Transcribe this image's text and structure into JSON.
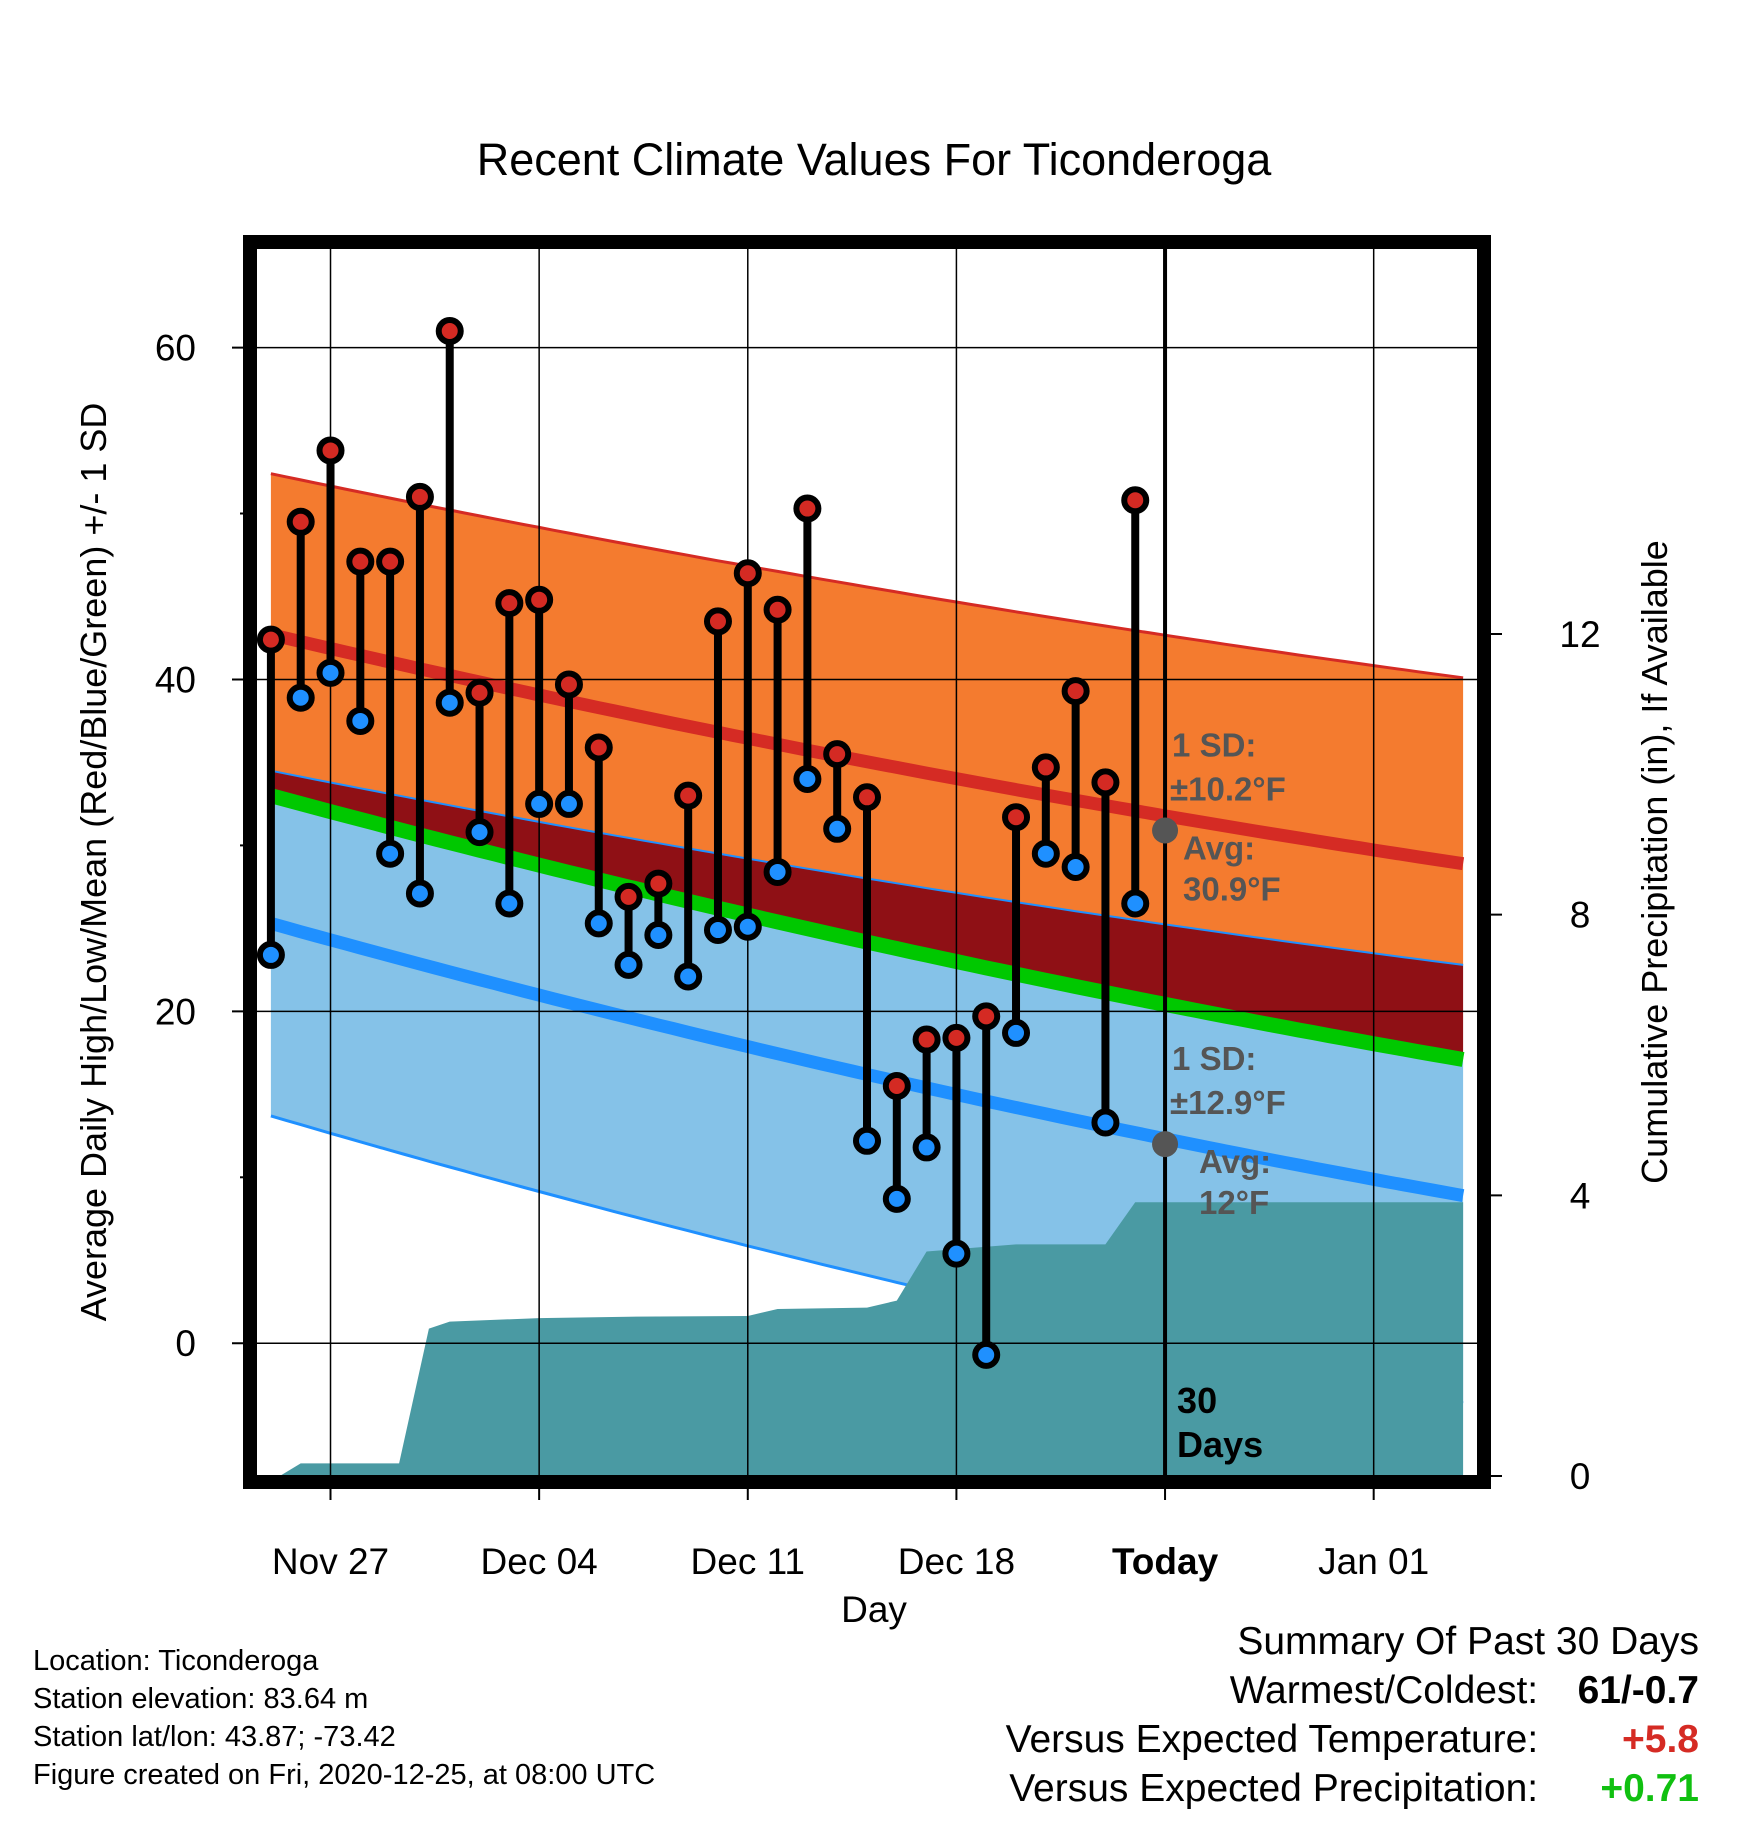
{
  "chart_data": {
    "type": "line",
    "title": "Recent Climate Values For Ticonderoga",
    "xlabel": "Day",
    "ylabel": "Average Daily High/Low/Mean (Red/Blue/Green) +/- 1 SD",
    "y2label": "Cumulative Precipitation (in), If Available",
    "x_ticks": [
      {
        "day": 3,
        "label": "Nov 27"
      },
      {
        "day": 10,
        "label": "Dec 04"
      },
      {
        "day": 17,
        "label": "Dec 11"
      },
      {
        "day": 24,
        "label": "Dec 18"
      },
      {
        "day": 31,
        "label": "Today"
      },
      {
        "day": 38,
        "label": "Jan 01"
      }
    ],
    "xlim": [
      0.5,
      41.5
    ],
    "ylim": [
      -8,
      66
    ],
    "y_ticks": [
      0,
      20,
      40,
      60
    ],
    "y2lim": [
      0,
      17.5
    ],
    "y2_ticks": [
      0,
      4,
      8,
      12
    ],
    "grid": true,
    "today_day": 31,
    "days_label": "30 Days",
    "daily_high": [
      42.4,
      49.5,
      53.8,
      47.1,
      47.1,
      51.0,
      61.0,
      39.2,
      44.6,
      44.8,
      39.7,
      35.9,
      26.9,
      27.7,
      33.0,
      43.5,
      46.4,
      44.2,
      50.3,
      35.5,
      32.9,
      15.5,
      18.3,
      18.4,
      19.7,
      31.7,
      34.7,
      39.3,
      33.8,
      50.8
    ],
    "daily_low": [
      23.4,
      38.9,
      40.4,
      37.5,
      29.5,
      27.1,
      38.6,
      30.8,
      26.5,
      32.5,
      32.5,
      25.3,
      22.8,
      24.6,
      22.1,
      24.9,
      25.1,
      28.4,
      34.0,
      31.0,
      12.2,
      8.7,
      11.8,
      5.4,
      -0.7,
      18.7,
      29.5,
      28.7,
      13.3,
      26.5
    ],
    "normal_high": {
      "day_start": 1,
      "day_end": 41,
      "start": 42.7,
      "end": 28.9
    },
    "normal_high_upper": {
      "start": 52.4,
      "end": 40.1
    },
    "normal_high_lower": {
      "start": 34.5,
      "end": 22.8
    },
    "normal_mean": {
      "start": 33.0,
      "end": 17.1
    },
    "normal_low": {
      "start": 25.3,
      "end": 8.9
    },
    "normal_low_lower": {
      "start": 13.7,
      "end": -3.6
    },
    "cumulative_precip": [
      [
        1,
        0
      ],
      [
        1.3,
        0.0
      ],
      [
        2,
        0.18
      ],
      [
        5.3,
        0.18
      ],
      [
        6.3,
        2.1
      ],
      [
        7,
        2.2
      ],
      [
        10,
        2.25
      ],
      [
        13,
        2.27
      ],
      [
        17,
        2.28
      ],
      [
        18,
        2.38
      ],
      [
        21,
        2.4
      ],
      [
        22,
        2.5
      ],
      [
        23,
        3.2
      ],
      [
        26,
        3.3
      ],
      [
        29,
        3.3
      ],
      [
        30,
        3.9
      ],
      [
        41,
        3.9
      ]
    ],
    "annotations": [
      {
        "line1": "1 SD:",
        "line2": "±10.2°F",
        "avg_label": "Avg:",
        "avg_value": "30.9°F",
        "value": 30.9
      },
      {
        "line1": "1 SD:",
        "line2": "±12.9°F",
        "avg_label": "Avg:",
        "avg_value": "12°F",
        "value": 12.0
      }
    ],
    "colors": {
      "high_band": "#f47b2f",
      "high_line": "#d52b24",
      "dark_band": "#8f1015",
      "mean_line": "#00c800",
      "low_band": "#85c2e8",
      "low_line": "#1f90ff",
      "precip": "#4a9aa3",
      "high_dot": "#d42a23",
      "low_dot": "#1f90ff",
      "annotation": "#555555"
    }
  },
  "footer": {
    "location": "Location: Ticonderoga",
    "elevation": "Station elevation: 83.64 m",
    "latlon": "Station lat/lon: 43.87; -73.42",
    "created": "Figure created on Fri, 2020-12-25, at 08:00 UTC"
  },
  "summary": {
    "title": "Summary Of Past 30 Days",
    "warmest_coldest_label": "Warmest/Coldest:",
    "warmest_coldest_value": "61/-0.7",
    "temp_label": "Versus Expected Temperature:",
    "temp_value": "+5.8",
    "temp_color": "#d52b24",
    "precip_label": "Versus Expected Precipitation:",
    "precip_value": "+0.71",
    "precip_color": "#10c010"
  }
}
